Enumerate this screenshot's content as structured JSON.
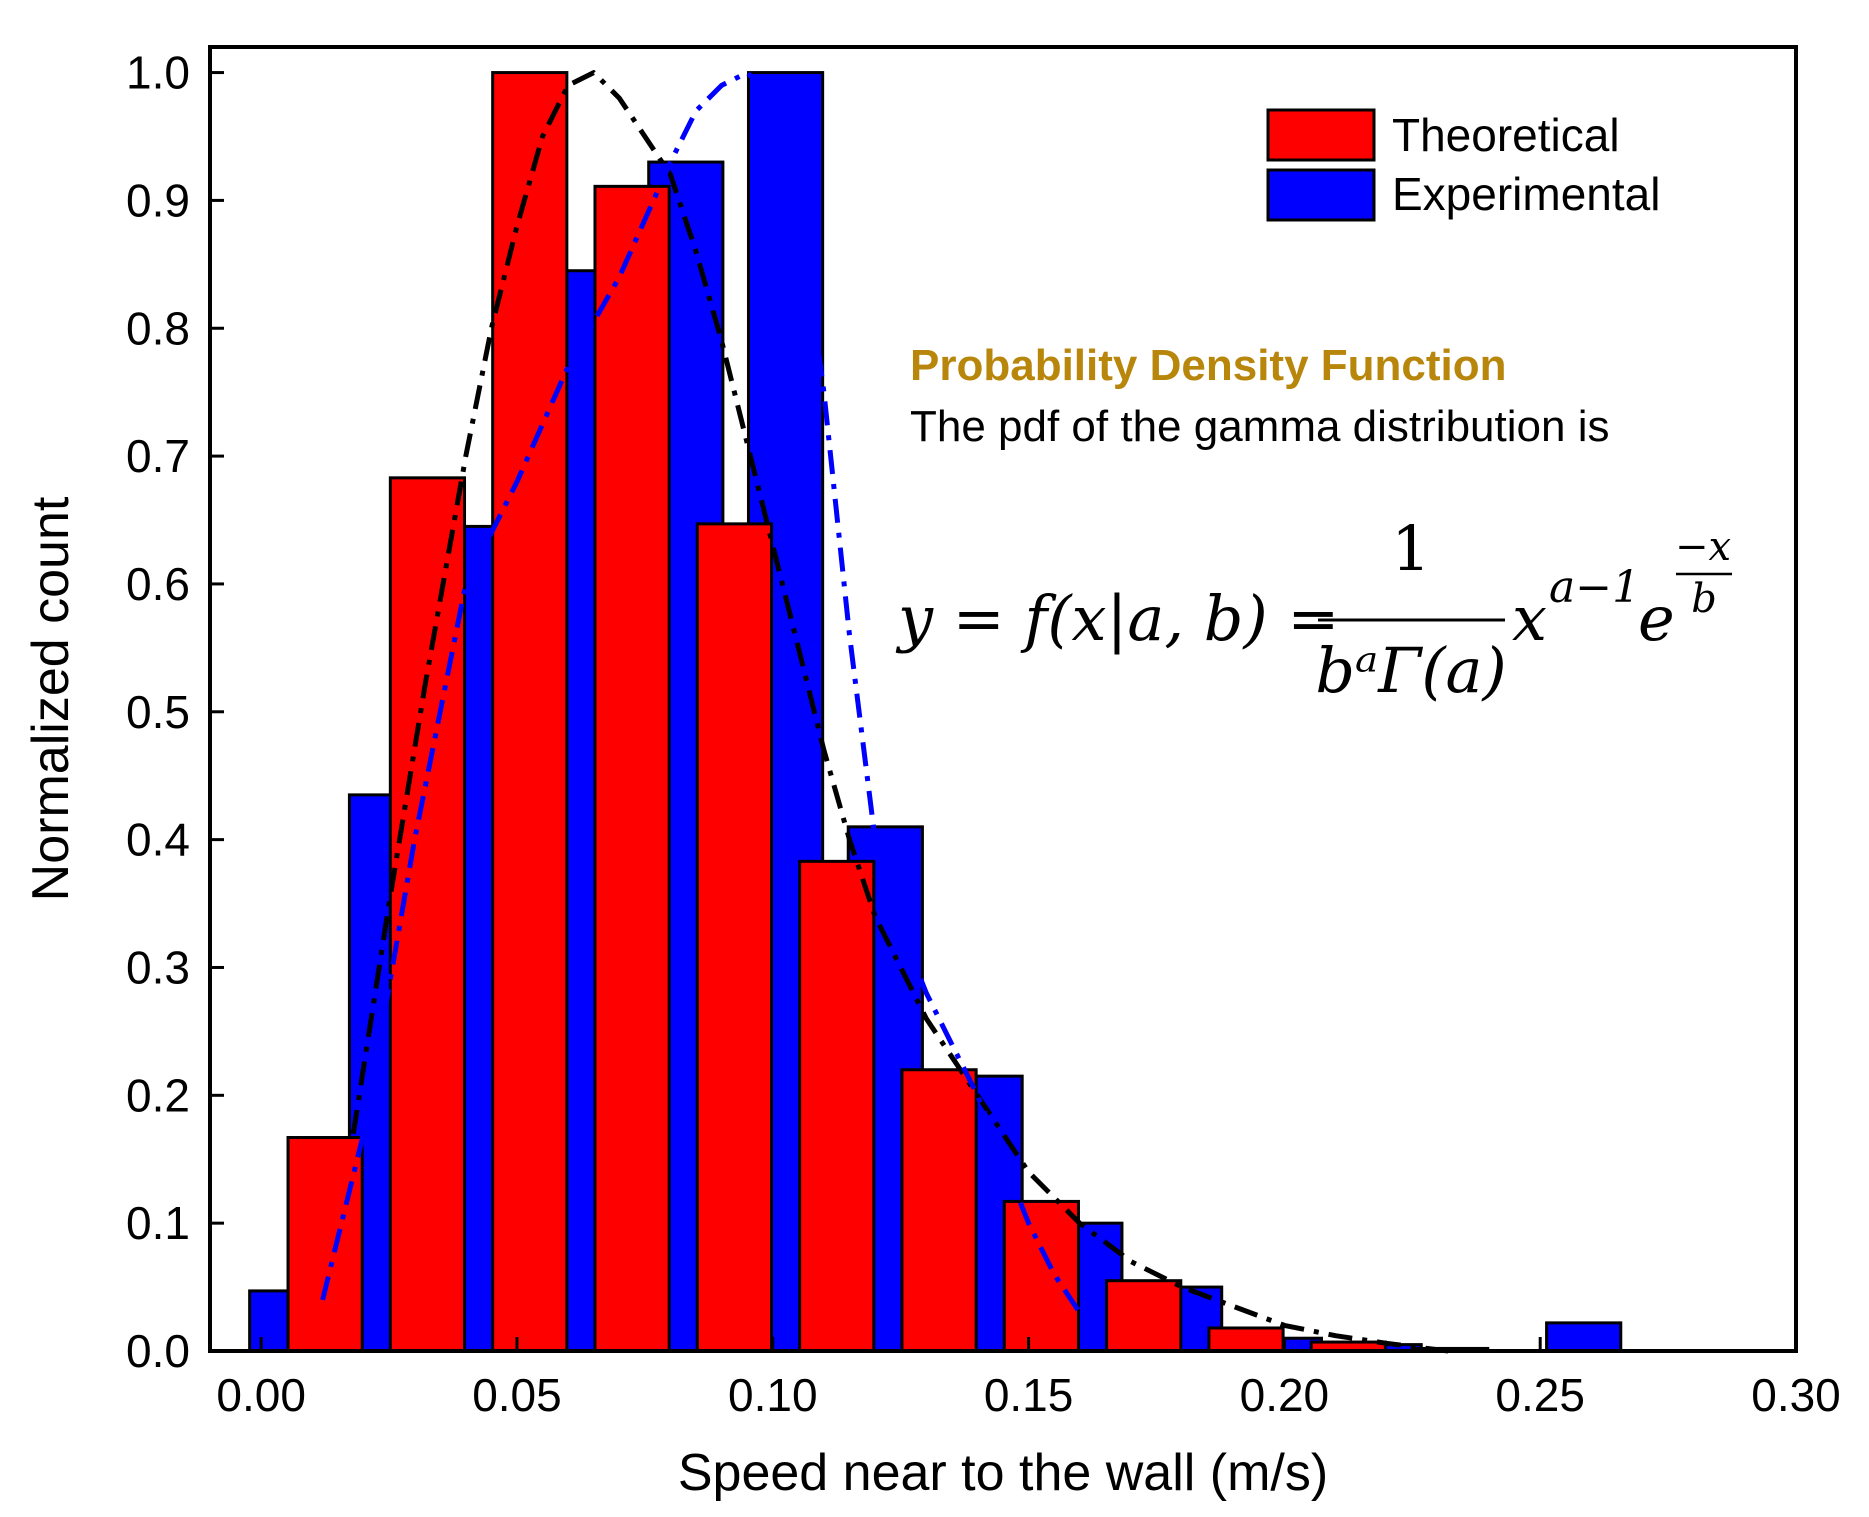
{
  "chart_data": {
    "type": "bar",
    "xlabel": "Speed near to the wall (m/s)",
    "ylabel": "Normalized count",
    "xlim": [
      -0.01,
      0.3
    ],
    "ylim": [
      0,
      1.02
    ],
    "xticks": [
      "0.00",
      "0.05",
      "0.10",
      "0.15",
      "0.20",
      "0.25",
      "0.30"
    ],
    "yticks": [
      "0.0",
      "0.1",
      "0.2",
      "0.3",
      "0.4",
      "0.5",
      "0.6",
      "0.7",
      "0.8",
      "0.9",
      "1.0"
    ],
    "legend_position": "top-right",
    "series": [
      {
        "name": "Experimental",
        "color": "#0000ff",
        "x": [
          0.005,
          0.0245,
          0.044,
          0.0635,
          0.083,
          0.1025,
          0.122,
          0.1415,
          0.161,
          0.1805,
          0.2,
          0.2195,
          0.239,
          0.2585
        ],
        "values": [
          0.047,
          0.435,
          0.645,
          0.845,
          0.93,
          1.0,
          0.41,
          0.215,
          0.1,
          0.05,
          0.01,
          0.005,
          0.0,
          0.022
        ]
      },
      {
        "name": "Theoretical",
        "color": "#ff0000",
        "x": [
          0.0125,
          0.0325,
          0.0525,
          0.0725,
          0.0925,
          0.1125,
          0.1325,
          0.1525,
          0.1725,
          0.1925,
          0.2125,
          0.2325
        ],
        "values": [
          0.167,
          0.683,
          1.0,
          0.911,
          0.647,
          0.383,
          0.22,
          0.117,
          0.055,
          0.018,
          0.007,
          0.002
        ]
      }
    ],
    "fits": [
      {
        "name": "theoretical-fit",
        "color": "#000000",
        "style": "dash-dot",
        "x": [
          0.018,
          0.025,
          0.032,
          0.04,
          0.045,
          0.05,
          0.055,
          0.06,
          0.065,
          0.07,
          0.075,
          0.08,
          0.085,
          0.09,
          0.095,
          0.1,
          0.105,
          0.11,
          0.115,
          0.12,
          0.125,
          0.13,
          0.14,
          0.15,
          0.16,
          0.17,
          0.18,
          0.19,
          0.2,
          0.21,
          0.22,
          0.232
        ],
        "y": [
          0.17,
          0.35,
          0.52,
          0.7,
          0.8,
          0.88,
          0.95,
          0.99,
          1.0,
          0.98,
          0.95,
          0.92,
          0.86,
          0.79,
          0.71,
          0.63,
          0.55,
          0.47,
          0.4,
          0.34,
          0.3,
          0.26,
          0.2,
          0.14,
          0.1,
          0.07,
          0.05,
          0.035,
          0.02,
          0.012,
          0.006,
          0.0
        ]
      },
      {
        "name": "experimental-fit",
        "color": "#0000ff",
        "style": "dash-dot",
        "x": [
          0.012,
          0.02,
          0.03,
          0.04,
          0.05,
          0.06,
          0.07,
          0.08,
          0.085,
          0.09,
          0.095,
          0.1,
          0.105,
          0.11,
          0.115,
          0.12,
          0.125,
          0.13,
          0.135,
          0.14,
          0.145,
          0.15,
          0.155,
          0.16,
          0.163
        ],
        "y": [
          0.04,
          0.17,
          0.4,
          0.6,
          0.68,
          0.77,
          0.84,
          0.93,
          0.97,
          0.99,
          1.0,
          0.98,
          0.9,
          0.75,
          0.56,
          0.4,
          0.33,
          0.28,
          0.24,
          0.2,
          0.15,
          0.1,
          0.06,
          0.03,
          0.01
        ]
      }
    ]
  },
  "annotation": {
    "title": "Probability Density Function",
    "title_color": "#b8860b",
    "description": "The pdf of the gamma distribution is",
    "formula": {
      "lhs": "y = f(x|a, b) =",
      "numerator": "1",
      "denominator": "bᵃΓ(a)",
      "x_term": "x",
      "x_exponent": "a−1",
      "e_term": "e",
      "e_exp_numerator": "−x",
      "e_exp_denominator": "b"
    }
  }
}
